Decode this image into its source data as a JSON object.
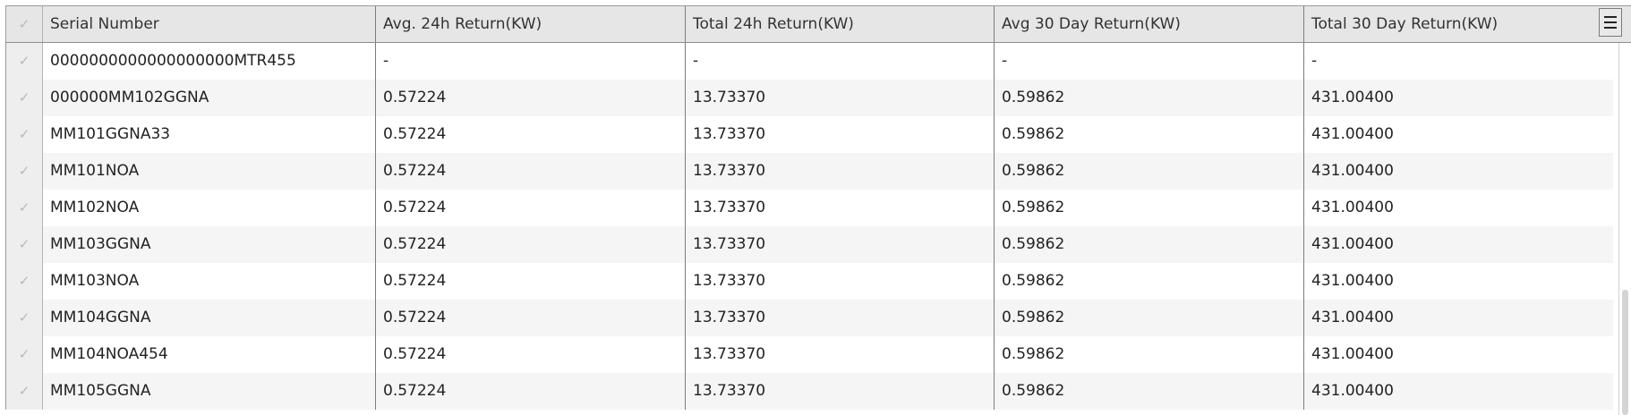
{
  "table": {
    "columns": [
      "Serial Number",
      "Avg. 24h Return(KW)",
      "Total 24h Return(KW)",
      "Avg 30 Day Return(KW)",
      "Total 30 Day Return(KW)"
    ],
    "check_glyph": "✓",
    "rows": [
      [
        "0000000000000000000MTR455",
        "-",
        "-",
        "-",
        "-"
      ],
      [
        "000000MM102GGNA",
        "0.57224",
        "13.73370",
        "0.59862",
        "431.00400"
      ],
      [
        "MM101GGNA33",
        "0.57224",
        "13.73370",
        "0.59862",
        "431.00400"
      ],
      [
        "MM101NOA",
        "0.57224",
        "13.73370",
        "0.59862",
        "431.00400"
      ],
      [
        "MM102NOA",
        "0.57224",
        "13.73370",
        "0.59862",
        "431.00400"
      ],
      [
        "MM103GGNA",
        "0.57224",
        "13.73370",
        "0.59862",
        "431.00400"
      ],
      [
        "MM103NOA",
        "0.57224",
        "13.73370",
        "0.59862",
        "431.00400"
      ],
      [
        "MM104GGNA",
        "0.57224",
        "13.73370",
        "0.59862",
        "431.00400"
      ],
      [
        "MM104NOA454",
        "0.57224",
        "13.73370",
        "0.59862",
        "431.00400"
      ],
      [
        "MM105GGNA",
        "0.57224",
        "13.73370",
        "0.59862",
        "431.00400"
      ]
    ]
  },
  "icons": {
    "row_select": "checkmark-icon",
    "column_menu": "hamburger-menu-icon"
  },
  "colors": {
    "header_bg": "#e6e6e6",
    "row_alt_bg": "#f5f5f5",
    "check_color": "#b8b8b8"
  }
}
